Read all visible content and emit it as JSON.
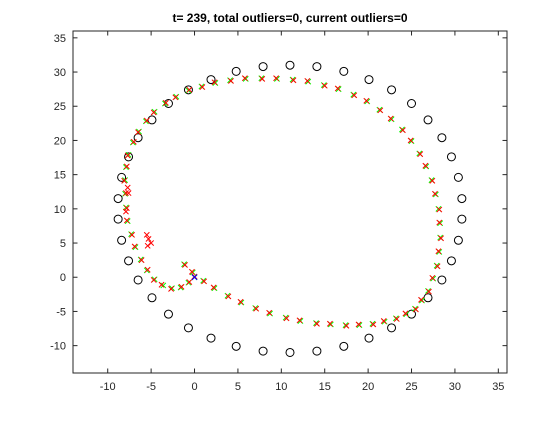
{
  "chart_data": {
    "type": "scatter",
    "title": "t= 239, total outliers=0, current outliers=0",
    "xlabel": "",
    "ylabel": "",
    "xlim": [
      -14,
      36
    ],
    "ylim": [
      -14,
      36
    ],
    "xticks": [
      -10,
      -5,
      0,
      5,
      10,
      15,
      20,
      25,
      30,
      35
    ],
    "yticks": [
      -10,
      -5,
      0,
      5,
      10,
      15,
      20,
      25,
      30,
      35
    ],
    "xtick_labels": [
      "-10",
      "-5",
      "0",
      "5",
      "10",
      "15",
      "20",
      "25",
      "30",
      "35"
    ],
    "ytick_labels": [
      "-10",
      "-5",
      "0",
      "5",
      "10",
      "15",
      "20",
      "25",
      "30",
      "35"
    ],
    "grid": false,
    "box": true,
    "colors": {
      "landmarks": "#000000",
      "true_path": "#00ff00",
      "estimated_path": "#ff0000",
      "robot": "#0000ff",
      "axes": "#262626"
    },
    "series": [
      {
        "marker": "circle",
        "x": [
          11.0,
          14.1,
          17.2,
          20.1,
          22.7,
          25.0,
          26.9,
          28.5,
          29.6,
          30.4,
          30.8,
          30.8,
          30.4,
          29.6,
          28.5,
          26.9,
          25.0,
          22.7,
          20.1,
          17.2,
          14.1,
          11.0,
          7.9,
          4.8,
          1.9,
          -0.7,
          -3.0,
          -4.9,
          -6.5,
          -7.6,
          -8.4,
          -8.8,
          -8.8,
          -8.4,
          -7.6,
          -6.5,
          -4.9,
          -3.0,
          -0.7,
          1.9,
          4.8,
          7.9
        ],
        "y": [
          31.0,
          30.8,
          30.1,
          28.9,
          27.4,
          25.4,
          23.0,
          20.4,
          17.6,
          14.6,
          11.5,
          8.5,
          5.4,
          2.4,
          -0.4,
          -3.0,
          -5.4,
          -7.4,
          -8.9,
          -10.1,
          -10.8,
          -11.0,
          -10.8,
          -10.1,
          -8.9,
          -7.4,
          -5.4,
          -3.0,
          -0.4,
          2.4,
          5.4,
          8.5,
          11.5,
          14.6,
          17.6,
          20.4,
          23.0,
          25.4,
          27.4,
          28.9,
          30.1,
          30.8
        ]
      },
      {
        "marker": "x",
        "x": [
          0.0,
          -0.7,
          -1.6,
          -2.6,
          -3.6,
          -4.6,
          -5.5,
          -6.2,
          -6.8,
          -7.3,
          -7.7,
          -7.9,
          -8.0,
          -8.0,
          -7.9,
          -7.6,
          -7.1,
          -6.4,
          -5.6,
          -4.6,
          -3.4,
          -2.1,
          -0.7,
          0.8,
          2.4,
          4.1,
          5.9,
          7.7,
          9.5,
          11.3,
          13.1,
          14.9,
          16.6,
          18.3,
          19.9,
          21.3,
          22.7,
          23.9,
          25.0,
          25.9,
          26.7,
          27.3,
          27.8,
          28.1,
          28.3,
          28.3,
          28.2,
          27.9,
          27.5,
          26.9,
          26.2,
          25.4,
          24.4,
          23.2,
          21.9,
          20.5,
          19.0,
          17.4,
          15.7,
          14.0,
          12.2,
          10.5,
          8.7,
          7.0,
          5.4,
          3.8,
          2.3,
          1.0,
          -0.2,
          -1.2
        ],
        "y": [
          0.0,
          -0.8,
          -1.5,
          -1.6,
          -1.2,
          -0.3,
          1.0,
          2.6,
          4.4,
          6.3,
          8.2,
          10.2,
          12.2,
          14.2,
          16.1,
          17.9,
          19.7,
          21.3,
          22.8,
          24.2,
          25.4,
          26.4,
          27.3,
          27.9,
          28.4,
          28.8,
          29.0,
          29.1,
          29.0,
          28.9,
          28.6,
          28.1,
          27.5,
          26.7,
          25.7,
          24.5,
          23.1,
          21.6,
          19.9,
          18.1,
          16.2,
          14.2,
          12.1,
          10.0,
          7.9,
          5.8,
          3.7,
          1.7,
          -0.2,
          -2.0,
          -3.4,
          -4.6,
          -5.4,
          -6.0,
          -6.5,
          -6.8,
          -7.0,
          -7.0,
          -6.9,
          -6.7,
          -6.4,
          -5.9,
          -5.3,
          -4.5,
          -3.7,
          -2.7,
          -1.6,
          -0.5,
          0.7,
          1.9
        ]
      },
      {
        "marker": "x",
        "x": [
          0.0,
          -0.6,
          -1.5,
          -2.7,
          -3.8,
          -4.7,
          -5.4,
          -6.1,
          -6.9,
          -7.2,
          -7.8,
          -7.8,
          -7.9,
          -8.1,
          -7.8,
          -7.7,
          -7.0,
          -6.5,
          -5.5,
          -4.7,
          -3.3,
          -2.2,
          -0.6,
          0.9,
          2.3,
          4.2,
          5.8,
          7.8,
          9.4,
          11.4,
          13.0,
          15.0,
          16.5,
          18.4,
          19.8,
          21.4,
          22.6,
          24.0,
          24.9,
          26.0,
          26.6,
          27.4,
          27.7,
          28.2,
          28.2,
          28.4,
          28.1,
          28.0,
          27.4,
          27.0,
          26.1,
          25.5,
          24.3,
          23.3,
          21.8,
          20.6,
          18.9,
          17.5,
          15.6,
          14.1,
          12.1,
          10.6,
          8.6,
          7.1,
          5.3,
          3.9,
          2.2,
          1.1,
          -0.3,
          -1.1,
          -5.5,
          -5.3,
          -5.0,
          -5.4,
          -7.6,
          -7.9,
          -7.7
        ],
        "y": [
          0.1,
          -0.7,
          -1.4,
          -1.7,
          -1.1,
          -0.4,
          1.1,
          2.5,
          4.5,
          6.2,
          8.3,
          10.1,
          12.3,
          14.1,
          16.2,
          17.8,
          19.8,
          21.2,
          22.9,
          24.1,
          25.5,
          26.3,
          27.4,
          27.8,
          28.5,
          28.7,
          29.1,
          29.0,
          29.1,
          28.8,
          28.7,
          28.0,
          27.6,
          26.6,
          25.8,
          24.4,
          23.2,
          21.5,
          20.0,
          18.0,
          16.3,
          14.1,
          12.2,
          9.9,
          8.0,
          5.7,
          3.8,
          1.6,
          -0.1,
          -2.1,
          -3.3,
          -4.7,
          -5.3,
          -6.1,
          -6.4,
          -6.9,
          -6.9,
          -7.1,
          -6.8,
          -6.8,
          -6.3,
          -6.0,
          -5.2,
          -4.6,
          -3.6,
          -2.8,
          -1.5,
          -0.6,
          0.8,
          1.8,
          6.2,
          5.6,
          5.0,
          4.6,
          12.3,
          9.6,
          13.1
        ]
      },
      {
        "marker": "x",
        "x": [
          0.0
        ],
        "y": [
          0.0
        ]
      }
    ]
  }
}
